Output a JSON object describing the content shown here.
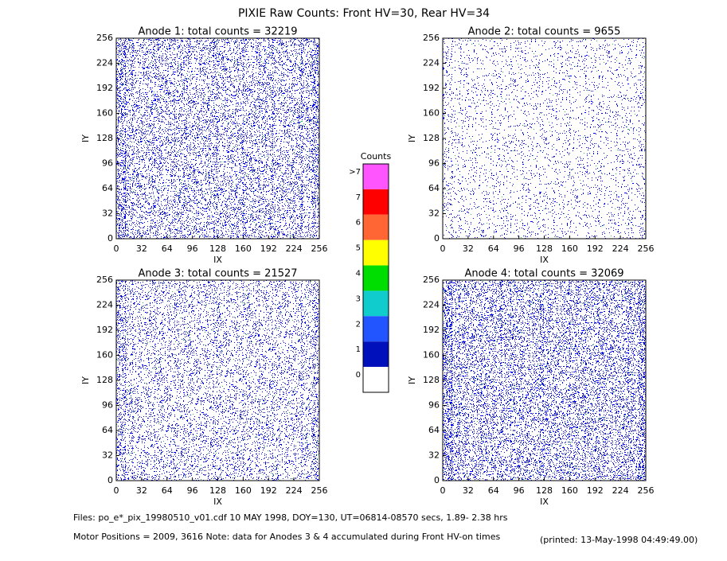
{
  "header": {
    "title": "PIXIE Raw Counts:  Front HV=30, Rear HV=34"
  },
  "chart_data": [
    {
      "type": "heatmap",
      "title": "Anode 1: total counts = 32219",
      "x_label": "IX",
      "y_label": "IY",
      "xlim": [
        0,
        256
      ],
      "xticks": [
        0,
        32,
        64,
        96,
        128,
        160,
        192,
        224,
        256
      ],
      "ylim": [
        0,
        256
      ],
      "yticks": [
        0,
        32,
        64,
        96,
        128,
        160,
        192,
        224,
        256
      ]
    },
    {
      "type": "heatmap",
      "title": "Anode 2: total counts = 9655",
      "x_label": "IX",
      "y_label": "IY",
      "xlim": [
        0,
        256
      ],
      "xticks": [
        0,
        32,
        64,
        96,
        128,
        160,
        192,
        224,
        256
      ],
      "ylim": [
        0,
        256
      ],
      "yticks": [
        0,
        32,
        64,
        96,
        128,
        160,
        192,
        224,
        256
      ]
    },
    {
      "type": "heatmap",
      "title": "Anode 3: total counts = 21527",
      "x_label": "IX",
      "y_label": "IY",
      "xlim": [
        0,
        256
      ],
      "xticks": [
        0,
        32,
        64,
        96,
        128,
        160,
        192,
        224,
        256
      ],
      "ylim": [
        0,
        256
      ],
      "yticks": [
        0,
        32,
        64,
        96,
        128,
        160,
        192,
        224,
        256
      ]
    },
    {
      "type": "heatmap",
      "title": "Anode 4: total counts = 32069",
      "x_label": "IX",
      "y_label": "IY",
      "xlim": [
        0,
        256
      ],
      "xticks": [
        0,
        32,
        64,
        96,
        128,
        160,
        192,
        224,
        256
      ],
      "ylim": [
        0,
        256
      ],
      "yticks": [
        0,
        32,
        64,
        96,
        128,
        160,
        192,
        224,
        256
      ]
    }
  ],
  "colorbar": {
    "title": "Counts",
    "levels": [
      {
        "label": ">7",
        "color": "#ff55ff"
      },
      {
        "label": "7",
        "color": "#ff0000"
      },
      {
        "label": "6",
        "color": "#ff6633"
      },
      {
        "label": "5",
        "color": "#ffff00"
      },
      {
        "label": "4",
        "color": "#00dd00"
      },
      {
        "label": "3",
        "color": "#11cccc"
      },
      {
        "label": "2",
        "color": "#2255ff"
      },
      {
        "label": "1",
        "color": "#0011bb"
      },
      {
        "label": "0",
        "color": "#ffffff"
      }
    ]
  },
  "footer": {
    "files": "Files: po_e*_pix_19980510_v01.cdf    10 MAY 1998, DOY=130, UT=06814-08570 secs,  1.89- 2.38 hrs",
    "motor": "Motor Positions = 2009, 3616   Note: data for Anodes 3 & 4 accumulated during Front HV-on times",
    "printed": "(printed: 13-May-1998 04:49:49.00)"
  }
}
